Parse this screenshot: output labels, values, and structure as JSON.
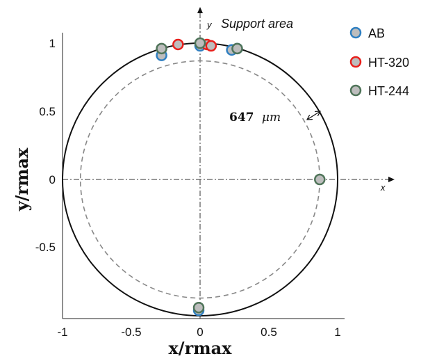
{
  "chart_data": {
    "type": "scatter",
    "title": "",
    "xlabel": "x/rmax",
    "ylabel": "y/rmax",
    "xlim": [
      -1,
      1
    ],
    "ylim": [
      -1,
      1
    ],
    "xticks": [
      "-1",
      "-0.5",
      "0",
      "0.5",
      "1"
    ],
    "yticks": [
      "-0.5",
      "0",
      "0.5",
      "1"
    ],
    "grid": false,
    "legend_position": "top-right",
    "outer_circle_radius": 1.0,
    "inner_circle_radius": 0.87,
    "axis_arrow_labels": {
      "x": "x",
      "y": "y"
    },
    "annotations": {
      "support_area": "Support area",
      "gap_value": "647",
      "gap_unit": "μm"
    },
    "series": [
      {
        "name": "AB",
        "edge_color": "#2f7fc1",
        "fill_color": "#bdbdbd",
        "points": [
          {
            "x": -0.28,
            "y": 0.91
          },
          {
            "x": 0.0,
            "y": 0.98
          },
          {
            "x": 0.23,
            "y": 0.95
          },
          {
            "x": 0.27,
            "y": 0.96
          },
          {
            "x": -0.01,
            "y": -0.96
          }
        ]
      },
      {
        "name": "HT-320",
        "edge_color": "#e8201c",
        "fill_color": "#bdbdbd",
        "points": [
          {
            "x": -0.16,
            "y": 0.99
          },
          {
            "x": 0.05,
            "y": 0.99
          },
          {
            "x": 0.08,
            "y": 0.98
          }
        ]
      },
      {
        "name": "HT-244",
        "edge_color": "#4f7459",
        "fill_color": "#bdbdbd",
        "points": [
          {
            "x": -0.28,
            "y": 0.96
          },
          {
            "x": 0.0,
            "y": 1.0
          },
          {
            "x": 0.27,
            "y": 0.96
          },
          {
            "x": 0.87,
            "y": 0.0
          },
          {
            "x": -0.01,
            "y": -0.94
          }
        ]
      }
    ]
  }
}
